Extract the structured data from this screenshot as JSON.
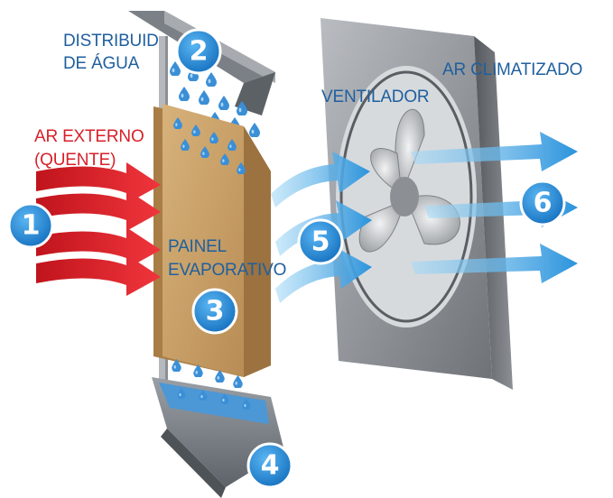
{
  "labels": {
    "distribuidor_line1": "DISTRIBUID",
    "distribuidor_line2": "DE  ÁGUA",
    "ar_climatizado": "AR CLIMATIZADO",
    "ventilador": "VENTILADOR",
    "ar_externo_line1": "AR EXTERNO",
    "ar_externo_line2": "(QUENTE)",
    "painel_line1": "PAINEL",
    "painel_line2": "EVAPORATIVO"
  },
  "badges": [
    "1",
    "2",
    "3",
    "4",
    "5",
    "6"
  ],
  "colors": {
    "label_blue": "#1f5f9e",
    "label_red": "#d8202a",
    "badge_blue": "#1e88d8",
    "hot_air_red": "#e3262e",
    "cool_air_blue": "#3aa3e3",
    "pad_tan": "#c8a066",
    "frame_gray": "#8a8d92",
    "water_blue": "#3b8fd6"
  },
  "icons": {
    "water_drop": "water-drop-icon",
    "fan": "fan-icon"
  }
}
